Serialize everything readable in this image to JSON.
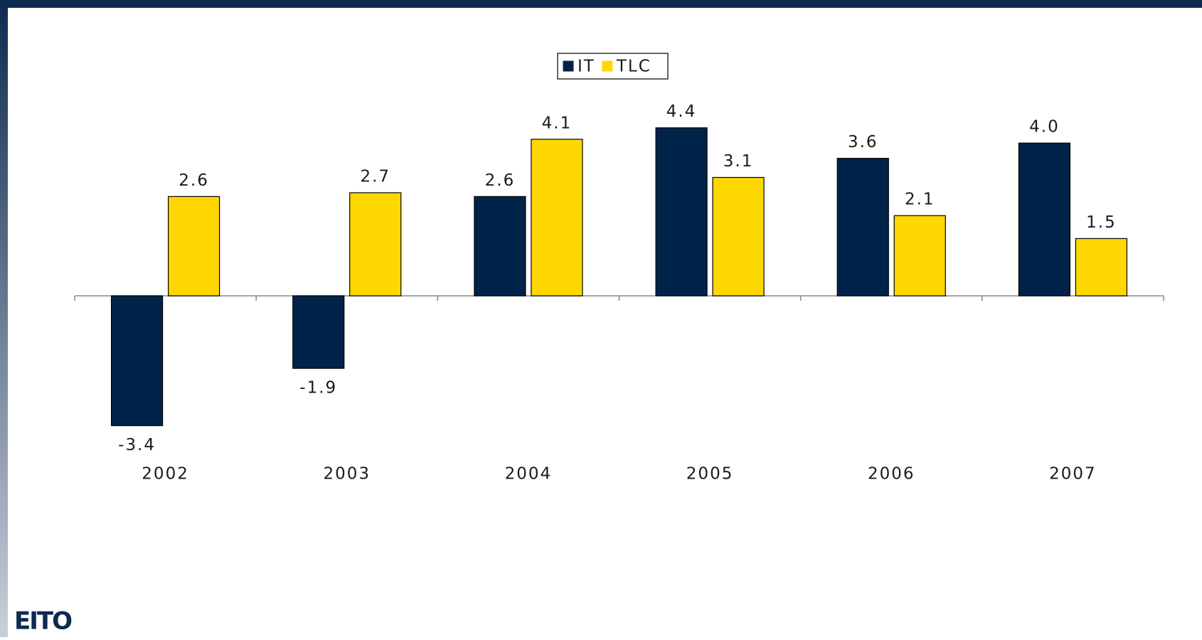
{
  "chart_data": {
    "type": "bar",
    "categories": [
      "2002",
      "2003",
      "2004",
      "2005",
      "2006",
      "2007"
    ],
    "series": [
      {
        "name": "IT",
        "color": "#00234a",
        "values": [
          -3.4,
          -1.9,
          2.6,
          4.4,
          3.6,
          4.0
        ],
        "value_labels": [
          "-3.4",
          "-1.9",
          "2.6",
          "4.4",
          "3.6",
          "4.0"
        ]
      },
      {
        "name": "TLC",
        "color": "#ffd700",
        "values": [
          2.6,
          2.7,
          4.1,
          3.1,
          2.1,
          1.5
        ],
        "value_labels": [
          "2.6",
          "2.7",
          "4.1",
          "3.1",
          "2.1",
          "1.5"
        ]
      }
    ],
    "legend": "top"
  },
  "logo": "EITO"
}
